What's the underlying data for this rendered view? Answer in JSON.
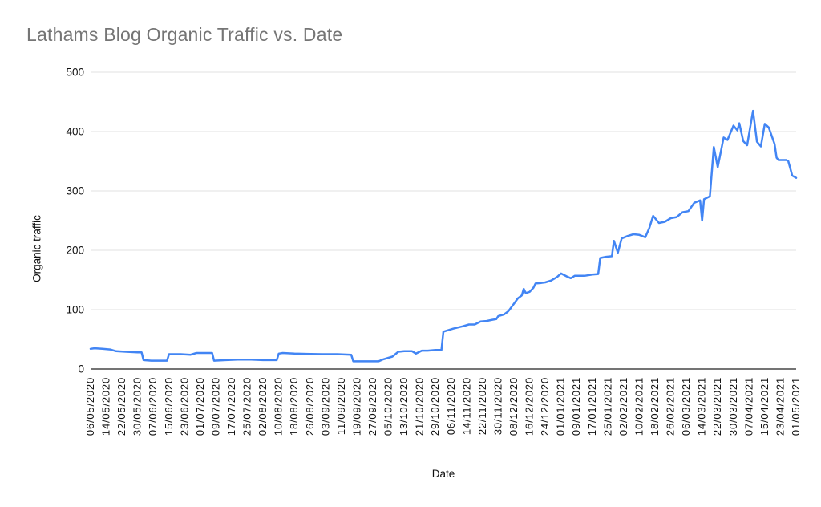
{
  "chart_data": {
    "type": "line",
    "title": "Lathams Blog Organic Traffic vs. Date",
    "xlabel": "Date",
    "ylabel": "Organic traffic",
    "ylim": [
      0,
      500
    ],
    "y_ticks": [
      0,
      100,
      200,
      300,
      400,
      500
    ],
    "grid": true,
    "legend_position": "none",
    "x_tick_interval_days": 8,
    "x_tick_labels": [
      "06/05/2020",
      "14/05/2020",
      "22/05/2020",
      "30/05/2020",
      "07/06/2020",
      "15/06/2020",
      "23/06/2020",
      "01/07/2020",
      "09/07/2020",
      "17/07/2020",
      "25/07/2020",
      "02/08/2020",
      "10/08/2020",
      "18/08/2020",
      "26/08/2020",
      "03/09/2020",
      "11/09/2020",
      "19/09/2020",
      "27/09/2020",
      "05/10/2020",
      "13/10/2020",
      "21/10/2020",
      "29/10/2020",
      "06/11/2020",
      "14/11/2020",
      "22/11/2020",
      "30/11/2020",
      "08/12/2020",
      "16/12/2020",
      "24/12/2020",
      "01/01/2021",
      "09/01/2021",
      "17/01/2021",
      "25/01/2021",
      "02/02/2021",
      "10/02/2021",
      "18/02/2021",
      "26/02/2021",
      "06/03/2021",
      "14/03/2021",
      "22/03/2021",
      "30/03/2021",
      "07/04/2021",
      "15/04/2021",
      "23/04/2021",
      "01/05/2021"
    ],
    "series": [
      {
        "name": "Organic traffic",
        "x_unit": "days since 06/05/2020",
        "points": [
          [
            0,
            34
          ],
          [
            2,
            35
          ],
          [
            6,
            34
          ],
          [
            10,
            33
          ],
          [
            13,
            30
          ],
          [
            18,
            29
          ],
          [
            24,
            28
          ],
          [
            26,
            28
          ],
          [
            27,
            15
          ],
          [
            31,
            14
          ],
          [
            39,
            14
          ],
          [
            40,
            25
          ],
          [
            46,
            25
          ],
          [
            51,
            24
          ],
          [
            54,
            27
          ],
          [
            62,
            27
          ],
          [
            63,
            14
          ],
          [
            69,
            15
          ],
          [
            75,
            16
          ],
          [
            82,
            16
          ],
          [
            88,
            15
          ],
          [
            95,
            15
          ],
          [
            96,
            26
          ],
          [
            98,
            27
          ],
          [
            104,
            26
          ],
          [
            118,
            25
          ],
          [
            126,
            25
          ],
          [
            133,
            24
          ],
          [
            134,
            13
          ],
          [
            140,
            13
          ],
          [
            147,
            13
          ],
          [
            149,
            16
          ],
          [
            154,
            21
          ],
          [
            157,
            29
          ],
          [
            160,
            30
          ],
          [
            164,
            30
          ],
          [
            166,
            26
          ],
          [
            169,
            31
          ],
          [
            172,
            31
          ],
          [
            176,
            32
          ],
          [
            179,
            32
          ],
          [
            180,
            63
          ],
          [
            185,
            68
          ],
          [
            190,
            72
          ],
          [
            193,
            75
          ],
          [
            196,
            75
          ],
          [
            199,
            80
          ],
          [
            202,
            81
          ],
          [
            205,
            83
          ],
          [
            207,
            84
          ],
          [
            208,
            89
          ],
          [
            211,
            92
          ],
          [
            213,
            97
          ],
          [
            214,
            101
          ],
          [
            216,
            110
          ],
          [
            218,
            119
          ],
          [
            220,
            124
          ],
          [
            221,
            135
          ],
          [
            222,
            128
          ],
          [
            224,
            130
          ],
          [
            226,
            137
          ],
          [
            227,
            144
          ],
          [
            230,
            145
          ],
          [
            232,
            146
          ],
          [
            235,
            149
          ],
          [
            238,
            155
          ],
          [
            240,
            161
          ],
          [
            243,
            156
          ],
          [
            245,
            153
          ],
          [
            247,
            157
          ],
          [
            252,
            157
          ],
          [
            256,
            159
          ],
          [
            259,
            160
          ],
          [
            260,
            187
          ],
          [
            263,
            189
          ],
          [
            266,
            190
          ],
          [
            267,
            216
          ],
          [
            269,
            196
          ],
          [
            271,
            220
          ],
          [
            274,
            224
          ],
          [
            277,
            227
          ],
          [
            280,
            226
          ],
          [
            283,
            222
          ],
          [
            285,
            237
          ],
          [
            287,
            258
          ],
          [
            290,
            246
          ],
          [
            293,
            248
          ],
          [
            296,
            254
          ],
          [
            299,
            256
          ],
          [
            302,
            264
          ],
          [
            305,
            266
          ],
          [
            308,
            280
          ],
          [
            311,
            284
          ],
          [
            312,
            250
          ],
          [
            313,
            286
          ],
          [
            316,
            291
          ],
          [
            318,
            374
          ],
          [
            320,
            340
          ],
          [
            323,
            390
          ],
          [
            325,
            386
          ],
          [
            328,
            410
          ],
          [
            330,
            402
          ],
          [
            331,
            414
          ],
          [
            333,
            384
          ],
          [
            335,
            377
          ],
          [
            338,
            435
          ],
          [
            340,
            383
          ],
          [
            342,
            375
          ],
          [
            344,
            413
          ],
          [
            346,
            407
          ],
          [
            349,
            379
          ],
          [
            350,
            356
          ],
          [
            351,
            352
          ],
          [
            355,
            352
          ],
          [
            356,
            350
          ],
          [
            357,
            338
          ],
          [
            358,
            326
          ],
          [
            360,
            322
          ]
        ]
      }
    ]
  },
  "styles": {
    "line_color": "#4285f4",
    "title_color": "#757575",
    "axis_text_color": "#111111",
    "gridline_color": "#e0e0e0",
    "axis_line_color": "#212121",
    "background": "#ffffff"
  }
}
